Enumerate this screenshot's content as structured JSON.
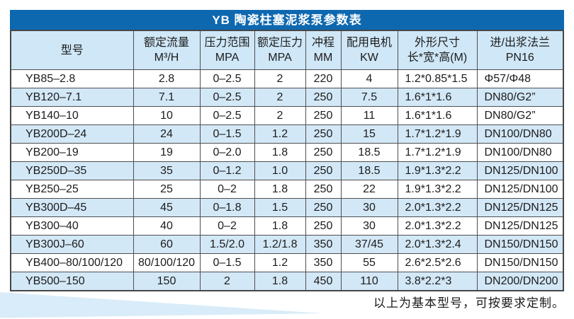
{
  "colors": {
    "title_bar_bg": "#0e68b0",
    "title_text": "#ffffff",
    "header_bg": "#cfe7f7",
    "row_alt_bg": "#d3e8f7",
    "row_bg": "#ffffff",
    "grid_border": "#4f4f4f",
    "text": "#1c1c1c",
    "wedge": "#d9ecf9"
  },
  "table": {
    "title": "YB 陶瓷柱塞泥浆泵参数表",
    "columns": [
      {
        "line1": "型号",
        "line2": ""
      },
      {
        "line1": "额定流量",
        "line2": "M³/H"
      },
      {
        "line1": "压力范围",
        "line2": "MPA"
      },
      {
        "line1": "额定压力",
        "line2": "MPA"
      },
      {
        "line1": "冲程",
        "line2": "MM"
      },
      {
        "line1": "配用电机",
        "line2": "KW"
      },
      {
        "line1": "外形尺寸",
        "line2": "长*宽*高(M)"
      },
      {
        "line1": "进/出浆法兰",
        "line2": "PN16"
      }
    ],
    "rows": [
      [
        "YB85–2.8",
        "2.8",
        "0–2.5",
        "2",
        "220",
        "4",
        "1.2*0.85*1.5",
        "Φ57/Φ48"
      ],
      [
        "YB120–7.1",
        "7.1",
        "0–2.5",
        "2",
        "250",
        "7.5",
        "1.6*1*1.6",
        "DN80/G2”"
      ],
      [
        "YB140–10",
        "10",
        "0–2.5",
        "2",
        "250",
        "11",
        "1.6*1*1.6",
        "DN80/G2”"
      ],
      [
        "YB200D–24",
        "24",
        "0–1.5",
        "1.2",
        "250",
        "15",
        "1.7*1.2*1.9",
        "DN100/DN80"
      ],
      [
        "YB200–19",
        "19",
        "0–2.0",
        "1.8",
        "250",
        "18.5",
        "1.7*1.2*1.9",
        "DN100/DN80"
      ],
      [
        "YB250D–35",
        "35",
        "0–1.2",
        "1.0",
        "250",
        "18.5",
        "1.9*1.3*2.2",
        "DN125/DN100"
      ],
      [
        "YB250–25",
        "25",
        "0–2",
        "1.8",
        "250",
        "22",
        "1.9*1.3*2.2",
        "DN125/DN100"
      ],
      [
        "YB300D–45",
        "45",
        "0–1.8",
        "1.5",
        "250",
        "30",
        "2.0*1.3*2.2",
        "DN125/DN125"
      ],
      [
        "YB300–40",
        "40",
        "0–2",
        "1.8",
        "250",
        "30",
        "2.0*1.3*2.2",
        "DN125/DN125"
      ],
      [
        "YB300J–60",
        "60",
        "1.5/2.0",
        "1.2/1.8",
        "350",
        "37/45",
        "2.0*1.3*2.4",
        "DN150/DN150"
      ],
      [
        "YB400–80/100/120",
        "80/100/120",
        "0–1.5",
        "1.2",
        "350",
        "55",
        "2.6*2.5*2.6",
        "DN150/DN150"
      ],
      [
        "YB500–150",
        "150",
        "2",
        "1.8",
        "450",
        "110",
        "3.8*2.2*3",
        "DN200/DN200"
      ]
    ]
  },
  "footer": {
    "note": "以上为基本型号，可按要求定制。"
  }
}
